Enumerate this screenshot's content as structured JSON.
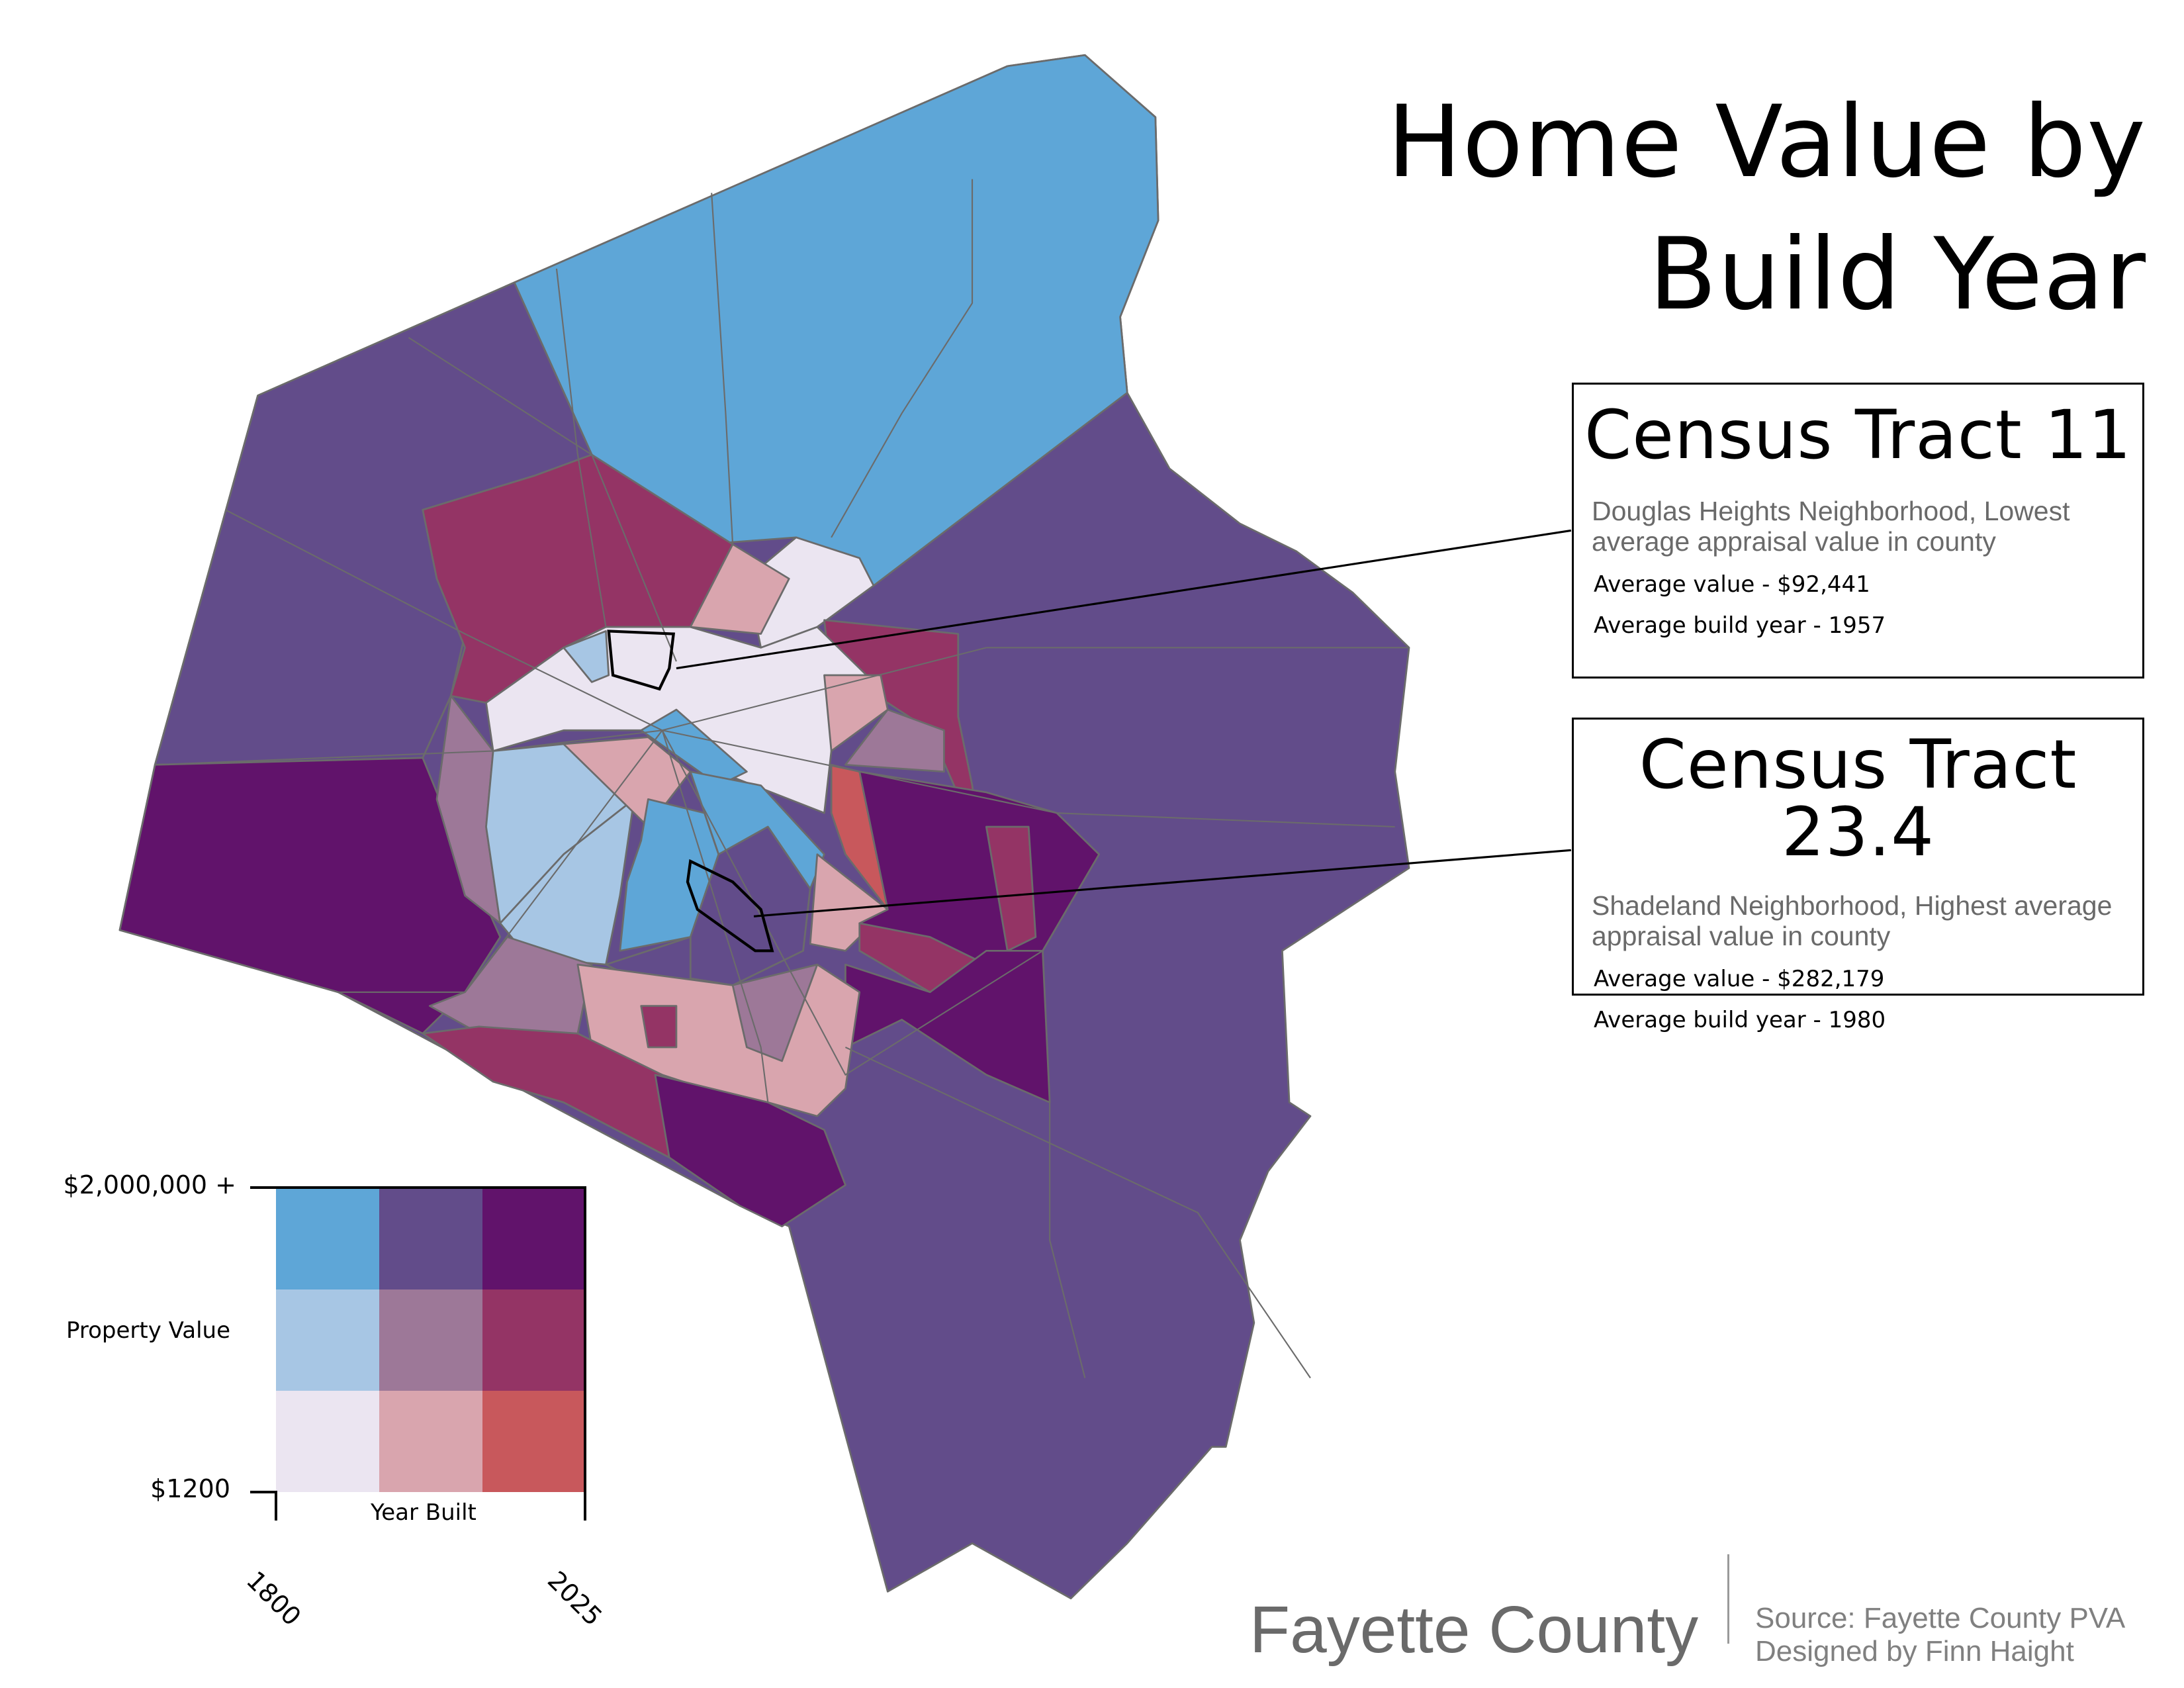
{
  "title": {
    "line1": "Home Value by",
    "line2": "Build Year"
  },
  "callouts": [
    {
      "title": "Census Tract 11",
      "description": "Douglas Heights Neighborhood, Lowest average appraisal value in county",
      "average_value": "Average value - $92,441",
      "average_build_year": "Average build year - 1957"
    },
    {
      "title": "Census Tract 23.4",
      "description": "Shadeland Neighborhood, Highest average appraisal value in county",
      "average_value": "Average value - $282,179",
      "average_build_year": "Average build year - 1980"
    }
  ],
  "legend": {
    "y_axis_label": "Property Value",
    "y_max_label": "$2,000,000 +",
    "y_min_label": "$1200",
    "x_axis_label": "Year Built",
    "x_min_label": "1800",
    "x_max_label": "2025",
    "colors": {
      "old_low": "#ebe5f1",
      "mid_low": "#d9a5ae",
      "new_low": "#c8585c",
      "old_mid": "#a7c6e4",
      "mid_mid": "#9d7898",
      "new_mid": "#943465",
      "old_high": "#5ea6d7",
      "mid_high": "#624c8a",
      "new_high": "#61136b"
    }
  },
  "footer": {
    "county": "Fayette County",
    "source": "Source: Fayette County PVA",
    "credit": "Designed by Finn Haight"
  }
}
